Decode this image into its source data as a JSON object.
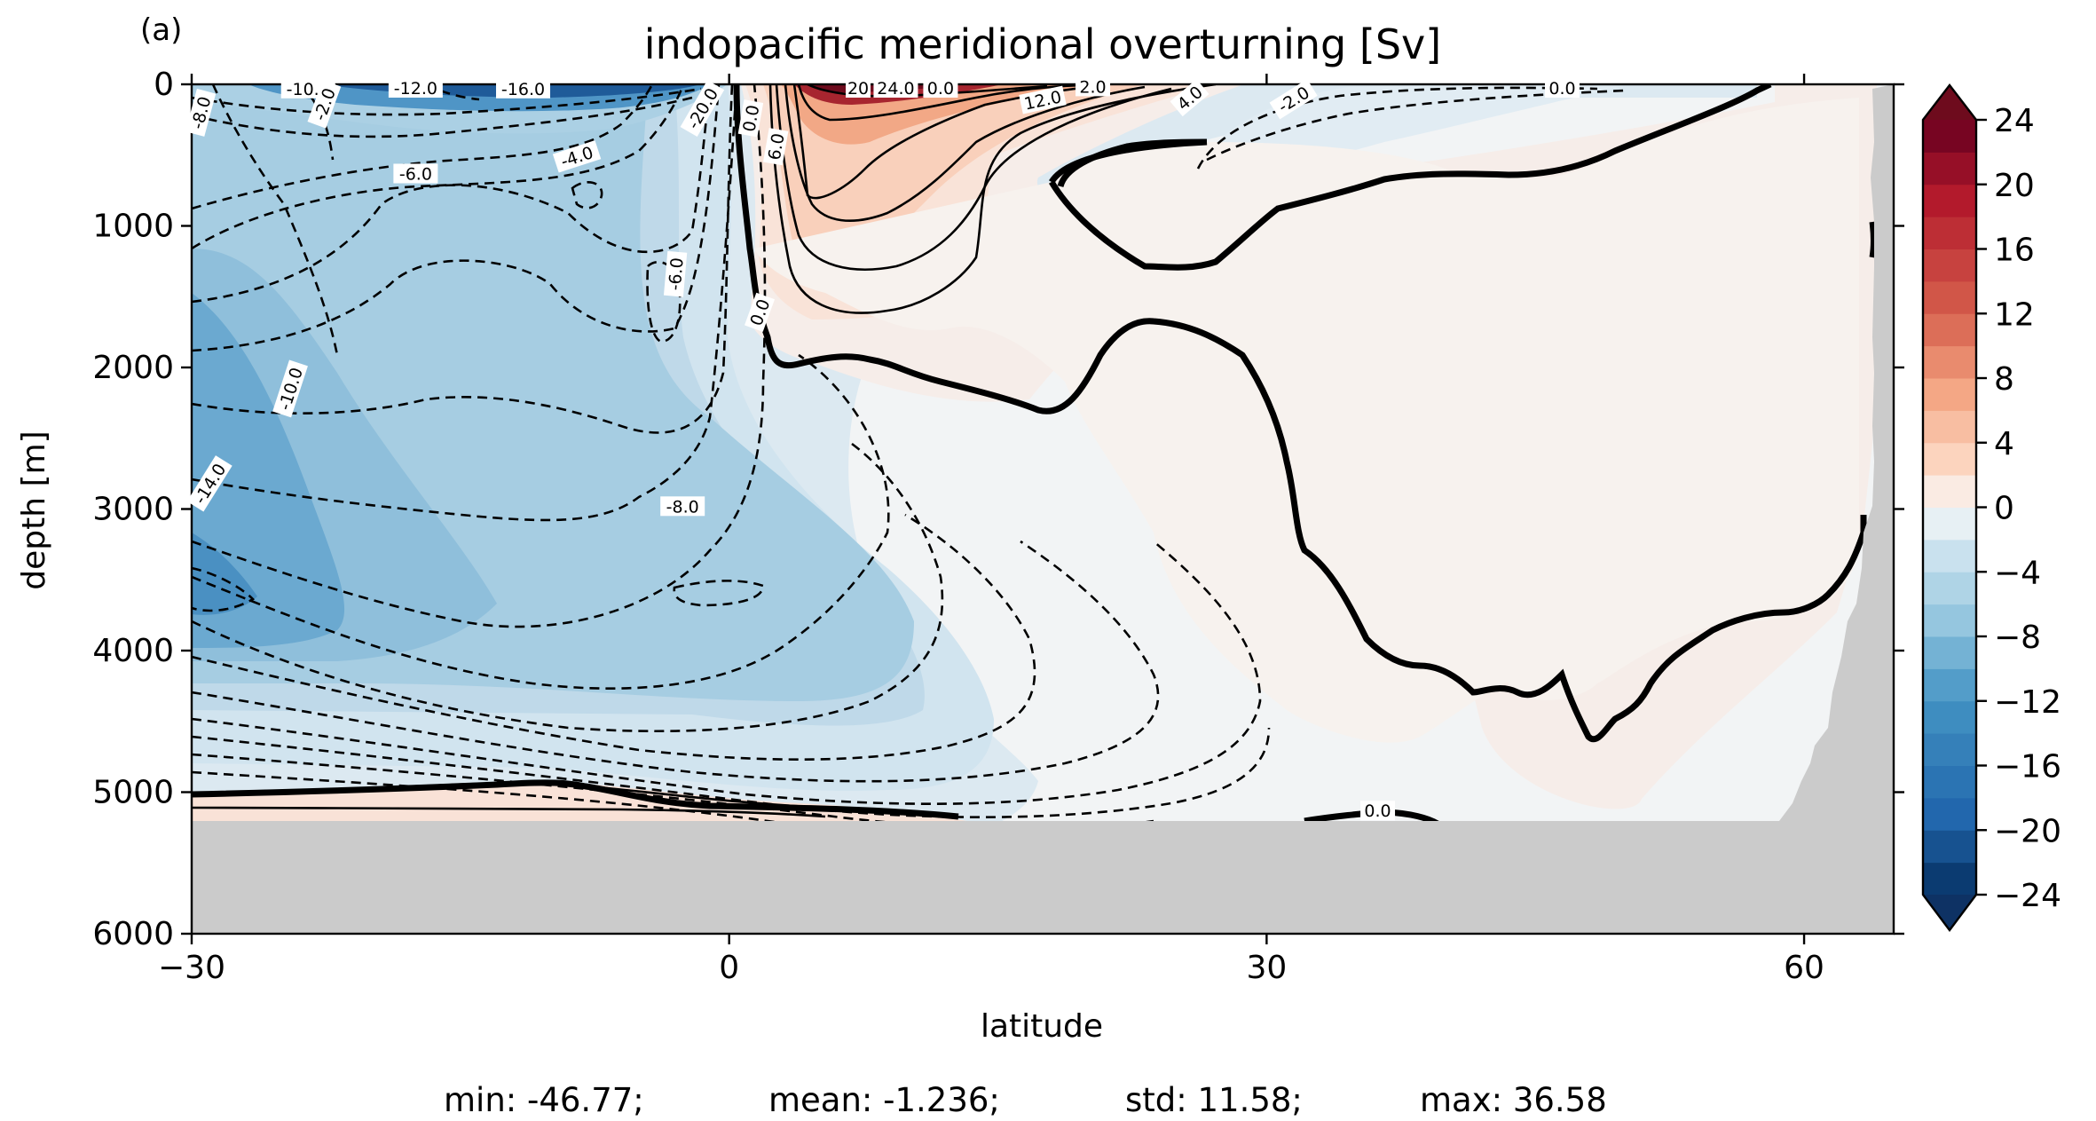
{
  "panel_label": "(a)",
  "stats": {
    "min": "min: -46.77;",
    "mean": "mean: -1.236;",
    "std": "std: 11.58;",
    "max": "max: 36.58"
  },
  "chart_data": {
    "type": "heatmap",
    "subtype": "filled-contour",
    "title": "indopacific meridional overturning [Sv]",
    "xlabel": "latitude",
    "ylabel": "depth [m]",
    "xlim": [
      -30,
      65
    ],
    "ylim": [
      6000,
      0
    ],
    "x_ticks": [
      -30,
      0,
      30,
      60
    ],
    "x_tick_labels": [
      "−30",
      "0",
      "30",
      "60"
    ],
    "y_ticks": [
      0,
      1000,
      2000,
      3000,
      4000,
      5000,
      6000
    ],
    "y_tick_labels": [
      "0",
      "1000",
      "2000",
      "3000",
      "4000",
      "5000",
      "6000"
    ],
    "grid": false,
    "colormap": "RdBu_r",
    "colorbar": {
      "vmin": -24,
      "vmax": 24,
      "step": 2,
      "extend": "both",
      "ticks": [
        24,
        20,
        16,
        12,
        8,
        4,
        0,
        -4,
        -8,
        -12,
        -16,
        -20,
        -24
      ],
      "tick_labels": [
        "24",
        "20",
        "16",
        "12",
        "8",
        "4",
        "0",
        "−4",
        "−8",
        "−12",
        "−16",
        "−20",
        "−24"
      ]
    },
    "contour_labels": [
      {
        "text": "-10.0",
        "lat": -23.5,
        "depth": 30,
        "rot": 0
      },
      {
        "text": "-12.0",
        "lat": -17.5,
        "depth": 25,
        "rot": 0
      },
      {
        "text": "-16.0",
        "lat": -11.5,
        "depth": 30,
        "rot": 0
      },
      {
        "text": "-20.0",
        "lat": -1.5,
        "depth": 170,
        "rot": -60
      },
      {
        "text": "20",
        "lat": 7.2,
        "depth": 25,
        "rot": 0
      },
      {
        "text": "24.0",
        "lat": 9.3,
        "depth": 25,
        "rot": 0
      },
      {
        "text": "0.0",
        "lat": 11.8,
        "depth": 25,
        "rot": 0
      },
      {
        "text": "12.0",
        "lat": 17.5,
        "depth": 110,
        "rot": -12
      },
      {
        "text": "2.0",
        "lat": 20.3,
        "depth": 15,
        "rot": 0
      },
      {
        "text": "4.0",
        "lat": 25.7,
        "depth": 95,
        "rot": -40
      },
      {
        "text": "-2.0",
        "lat": 31.5,
        "depth": 105,
        "rot": -32
      },
      {
        "text": "0.0",
        "lat": 46.5,
        "depth": 25,
        "rot": 0
      },
      {
        "text": "-8.0",
        "lat": -29.5,
        "depth": 200,
        "rot": -75
      },
      {
        "text": "-2.0",
        "lat": -22.6,
        "depth": 140,
        "rot": -70
      },
      {
        "text": "-6.0",
        "lat": -17.5,
        "depth": 630,
        "rot": 0
      },
      {
        "text": "-4.0",
        "lat": -8.5,
        "depth": 510,
        "rot": -18
      },
      {
        "text": "0.0",
        "lat": 1.2,
        "depth": 240,
        "rot": -80
      },
      {
        "text": "6.0",
        "lat": 2.6,
        "depth": 440,
        "rot": -80
      },
      {
        "text": "-6.0",
        "lat": -3.0,
        "depth": 1340,
        "rot": -85
      },
      {
        "text": "0.0",
        "lat": 1.7,
        "depth": 1610,
        "rot": -70
      },
      {
        "text": "-10.0",
        "lat": -24.5,
        "depth": 2150,
        "rot": -72
      },
      {
        "text": "-14.0",
        "lat": -29.0,
        "depth": 2820,
        "rot": -58
      },
      {
        "text": "-8.0",
        "lat": -2.6,
        "depth": 2980,
        "rot": 0
      },
      {
        "text": "0.0",
        "lat": 36.2,
        "depth": 5130,
        "rot": 0
      }
    ]
  }
}
